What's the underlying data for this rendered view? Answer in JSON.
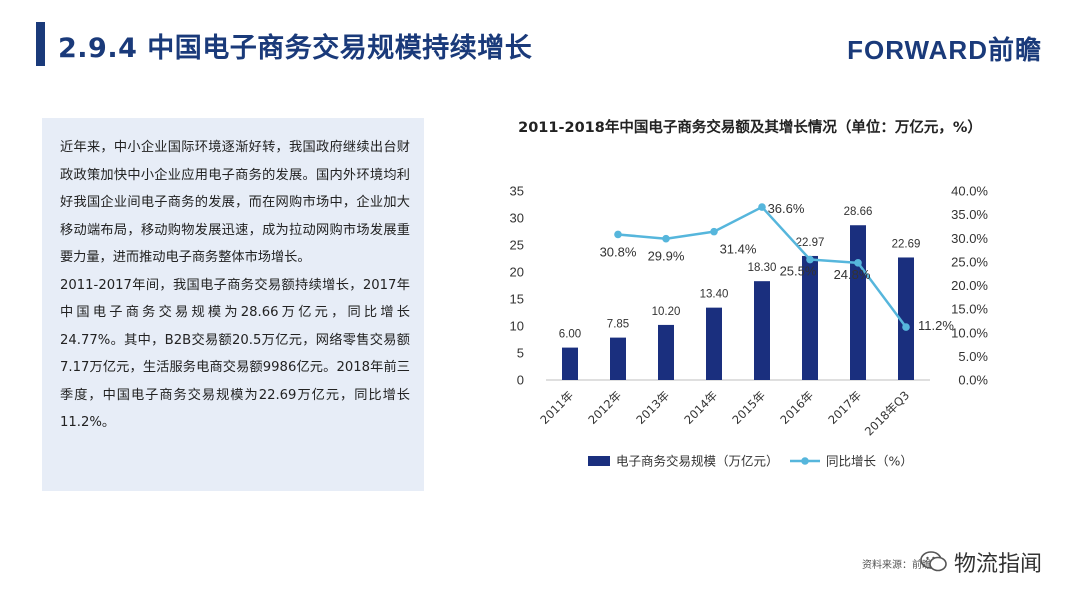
{
  "header": {
    "title": "2.9.4 中国电子商务交易规模持续增长",
    "logo_text": "FORWARD前瞻"
  },
  "textbox": {
    "paragraphs": [
      "近年来，中小企业国际环境逐渐好转，我国政府继续出台财政政策加快中小企业应用电子商务的发展。国内外环境均利好我国企业间电子商务的发展，而在网购市场中，企业加大移动端布局，移动购物发展迅速，成为拉动网购市场发展重要力量，进而推动电子商务整体市场增长。",
      "2011-2017年间，我国电子商务交易额持续增长，2017年中国电子商务交易规模为28.66万亿元，同比增长24.77%。其中，B2B交易额20.5万亿元，网络零售交易额7.17万亿元，生活服务电商交易额9986亿元。2018年前三季度，中国电子商务交易规模为22.69万亿元，同比增长11.2%。"
    ]
  },
  "footer": {
    "source": "资料来源：前瞻",
    "wechat_label": "物流指闻"
  },
  "colors": {
    "bar": "#1a2f7e",
    "line": "#56b6dc",
    "title": "#1a3a7a",
    "textbox_bg": "#e7edf7"
  },
  "chart_data": {
    "type": "bar",
    "title": "2011-2018年中国电子商务交易额及其增长情况（单位：万亿元，%）",
    "categories": [
      "2011年",
      "2012年",
      "2013年",
      "2014年",
      "2015年",
      "2016年",
      "2017年",
      "2018年Q3"
    ],
    "series": [
      {
        "name": "电子商务交易规模（万亿元）",
        "type": "bar",
        "axis": "left",
        "values": [
          6.0,
          7.85,
          10.2,
          13.4,
          18.3,
          22.97,
          28.66,
          22.69
        ],
        "labels": [
          "6.00",
          "7.85",
          "10.20",
          "13.40",
          "18.30",
          "22.97",
          "28.66",
          "22.69"
        ]
      },
      {
        "name": "同比增长（%）",
        "type": "line",
        "axis": "right",
        "values": [
          null,
          30.8,
          29.9,
          31.4,
          36.6,
          25.5,
          24.8,
          11.2
        ],
        "labels": [
          "",
          "30.8%",
          "29.9%",
          "31.4%",
          "36.6%",
          "25.5%",
          "24.8%",
          "11.2%"
        ]
      }
    ],
    "y_left": {
      "min": 0,
      "max": 35,
      "ticks": [
        0,
        5,
        10,
        15,
        20,
        25,
        30,
        35
      ],
      "tick_labels": [
        "0",
        "5",
        "10",
        "15",
        "20",
        "25",
        "30",
        "35"
      ]
    },
    "y_right": {
      "min": 0,
      "max": 40,
      "ticks": [
        0,
        5,
        10,
        15,
        20,
        25,
        30,
        35,
        40
      ],
      "tick_labels": [
        "0.0%",
        "5.0%",
        "10.0%",
        "15.0%",
        "20.0%",
        "25.0%",
        "30.0%",
        "35.0%",
        "40.0%"
      ]
    },
    "grid": false,
    "legend_position": "bottom"
  }
}
